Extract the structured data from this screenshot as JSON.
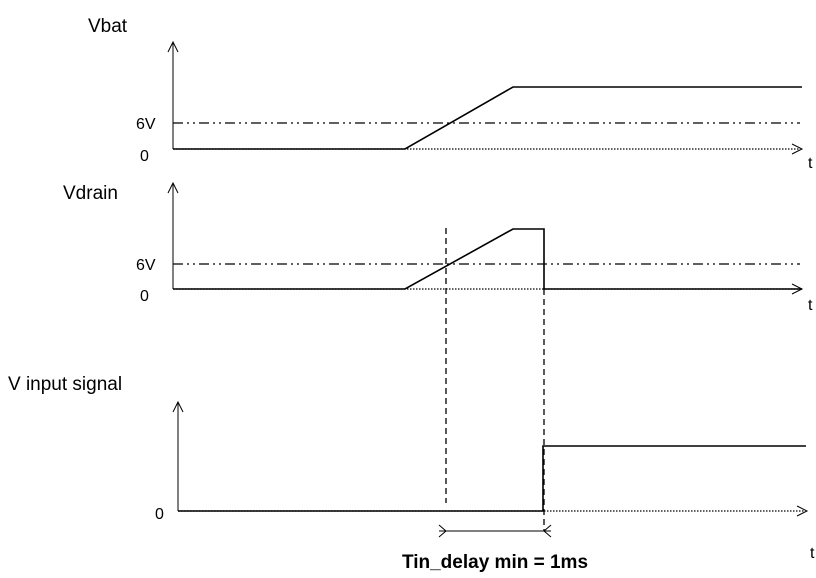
{
  "panels": {
    "vbat": {
      "title": "Vbat",
      "level_label": "6V",
      "zero_label": "0",
      "axis_label": "t"
    },
    "vdrain": {
      "title": "Vdrain",
      "level_label": "6V",
      "zero_label": "0",
      "axis_label": "t"
    },
    "vinput": {
      "title": "V input signal",
      "zero_label": "0",
      "axis_label": "t"
    }
  },
  "timing": {
    "caption": "Tin_delay min = 1ms"
  }
}
